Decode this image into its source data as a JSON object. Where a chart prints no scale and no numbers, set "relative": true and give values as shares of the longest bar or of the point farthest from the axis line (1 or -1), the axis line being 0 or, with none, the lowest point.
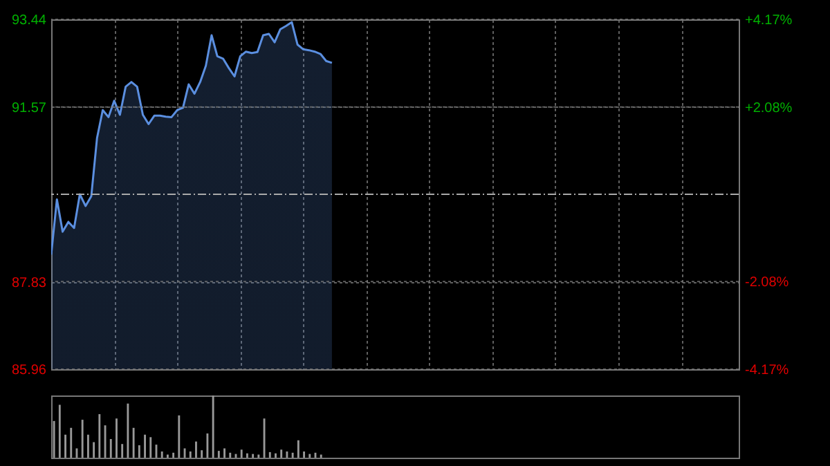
{
  "chart_data": [
    {
      "type": "area",
      "categories": [
        null,
        null,
        null,
        null,
        null,
        null,
        null,
        null,
        null,
        null,
        null,
        null,
        null,
        null,
        null,
        null,
        null,
        null,
        null,
        null,
        null,
        null,
        null,
        null,
        null,
        null,
        null,
        null,
        null,
        null,
        null,
        null,
        null,
        null,
        null,
        null,
        null,
        null,
        null,
        null,
        null,
        null,
        null,
        null,
        null,
        null,
        null,
        null,
        null,
        null,
        null,
        null,
        null,
        null,
        null,
        null,
        null,
        null,
        null,
        null,
        null,
        null,
        null,
        null,
        null,
        null,
        null,
        null,
        null,
        null,
        null,
        null,
        null,
        null,
        null,
        null,
        null,
        null,
        null,
        null,
        null,
        null,
        null,
        null,
        null,
        null,
        null,
        null,
        null,
        null,
        null,
        null,
        null,
        null,
        null,
        null,
        null,
        null,
        null,
        null,
        null,
        null,
        null,
        null,
        null,
        null,
        null,
        null,
        null,
        null,
        null,
        null,
        null,
        null,
        null,
        null,
        null,
        null,
        null,
        null,
        null
      ],
      "series": [
        {
          "color": "#5b8fe0",
          "values": [
            88.41,
            89.59,
            88.9,
            89.11,
            88.98,
            89.7,
            89.45,
            89.66,
            90.9,
            91.5,
            91.35,
            91.7,
            91.4,
            92.0,
            92.1,
            92.0,
            91.4,
            91.2,
            91.38,
            91.38,
            91.36,
            91.35,
            91.5,
            91.55,
            92.05,
            91.85,
            92.1,
            92.45,
            93.1,
            92.65,
            92.6,
            92.4,
            92.22,
            92.65,
            92.75,
            92.72,
            92.74,
            93.1,
            93.13,
            92.95,
            93.23,
            93.3,
            93.38,
            92.9,
            92.8,
            92.78,
            92.75,
            92.7,
            92.55,
            92.51,
            null,
            null,
            null,
            null,
            null,
            null,
            null,
            null,
            null,
            null,
            null,
            null,
            null,
            null,
            null,
            null,
            null,
            null,
            null,
            null,
            null,
            null,
            null,
            null,
            null,
            null,
            null,
            null,
            null,
            null,
            null,
            null,
            null,
            null,
            null,
            null,
            null,
            null,
            null,
            null,
            null,
            null,
            null,
            null,
            null,
            null,
            null,
            null,
            null,
            null,
            null,
            null,
            null,
            null,
            null,
            null,
            null,
            null,
            null,
            null,
            null,
            null,
            null,
            null,
            null,
            null,
            null,
            null,
            null,
            null,
            null
          ]
        }
      ],
      "ylim": [
        85.96,
        93.44
      ],
      "yticks": [
        {
          "value": 85.96,
          "label": "85.96"
        },
        {
          "value": 87.83,
          "label": "87.83"
        },
        {
          "value": 91.57,
          "label": "91.57"
        },
        {
          "value": 93.44,
          "label": "93.44"
        }
      ],
      "y2lim": [
        -4.17,
        4.17
      ],
      "y2ticks": [
        {
          "value": 4.17,
          "label": "+4.17%"
        },
        {
          "value": 2.08,
          "label": "+2.08%"
        },
        {
          "value": -2.08,
          "label": "-2.08%"
        },
        {
          "value": -4.17,
          "label": "-4.17%"
        }
      ],
      "ref_lines": [
        {
          "axis": "y",
          "value": 89.7,
          "color": "#aaaaaa",
          "line_style": "dashed"
        }
      ],
      "grid": true,
      "tick_labels": "y"
    },
    {
      "type": "bar",
      "relative": true,
      "categories": [
        null,
        null,
        null,
        null,
        null,
        null,
        null,
        null,
        null,
        null,
        null,
        null,
        null,
        null,
        null,
        null,
        null,
        null,
        null,
        null,
        null,
        null,
        null,
        null,
        null,
        null,
        null,
        null,
        null,
        null,
        null,
        null,
        null,
        null,
        null,
        null,
        null,
        null,
        null,
        null,
        null,
        null,
        null,
        null,
        null,
        null,
        null,
        null,
        null,
        null,
        null,
        null,
        null,
        null,
        null,
        null,
        null,
        null,
        null,
        null,
        null,
        null,
        null,
        null,
        null,
        null,
        null,
        null,
        null,
        null,
        null,
        null,
        null,
        null,
        null,
        null,
        null,
        null,
        null,
        null,
        null,
        null,
        null,
        null,
        null,
        null,
        null,
        null,
        null,
        null,
        null,
        null,
        null,
        null,
        null,
        null,
        null,
        null,
        null,
        null,
        null,
        null,
        null,
        null,
        null,
        null,
        null,
        null,
        null,
        null,
        null,
        null,
        null,
        null,
        null,
        null,
        null,
        null,
        null,
        null,
        null
      ],
      "series": [
        {
          "color": "#999999",
          "values": [
            0.59,
            0.85,
            0.37,
            0.48,
            0.15,
            0.61,
            0.37,
            0.25,
            0.7,
            0.52,
            0.3,
            0.63,
            0.22,
            0.87,
            0.48,
            0.2,
            0.37,
            0.33,
            0.21,
            0.1,
            0.05,
            0.08,
            0.68,
            0.15,
            0.1,
            0.26,
            0.12,
            0.39,
            1,
            0.11,
            0.15,
            0.08,
            0.06,
            0.13,
            0.07,
            0.06,
            0.05,
            0.63,
            0.09,
            0.07,
            0.13,
            0.1,
            0.08,
            0.28,
            0.1,
            0.06,
            0.08,
            0.05,
            null,
            null,
            null,
            null,
            null,
            null,
            null,
            null,
            null,
            null,
            null,
            null,
            null,
            null,
            null,
            null,
            null,
            null,
            null,
            null,
            null,
            null,
            null,
            null,
            null,
            null,
            null,
            null,
            null,
            null,
            null,
            null,
            null,
            null,
            null,
            null,
            null,
            null,
            null,
            null,
            null,
            null,
            null,
            null,
            null,
            null,
            null,
            null,
            null,
            null,
            null,
            null,
            null,
            null,
            null,
            null,
            null,
            null,
            null,
            null,
            null,
            null,
            null,
            null,
            null,
            null,
            null,
            null,
            null,
            null,
            null,
            null,
            null
          ]
        }
      ],
      "tick_labels": false
    }
  ]
}
